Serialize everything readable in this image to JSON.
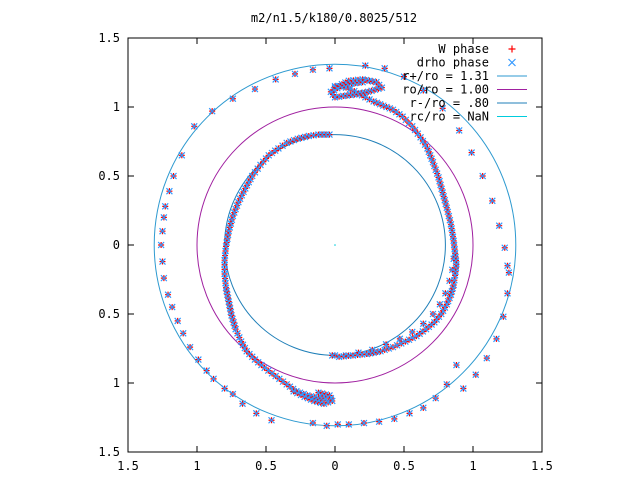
{
  "chart_data": {
    "type": "scatter",
    "title": "m2/n1.5/k180/0.8025/512",
    "xlim": [
      -1.5,
      1.5
    ],
    "ylim": [
      -1.5,
      1.5
    ],
    "x_ticks": [
      {
        "value": -1.5,
        "label": "1.5"
      },
      {
        "value": -1.0,
        "label": "1"
      },
      {
        "value": -0.5,
        "label": "0.5"
      },
      {
        "value": 0.0,
        "label": "0"
      },
      {
        "value": 0.5,
        "label": "0.5"
      },
      {
        "value": 1.0,
        "label": "1"
      },
      {
        "value": 1.5,
        "label": "1.5"
      }
    ],
    "y_ticks": [
      {
        "value": -1.5,
        "label": "1.5"
      },
      {
        "value": -1.0,
        "label": "1"
      },
      {
        "value": -0.5,
        "label": "0.5"
      },
      {
        "value": 0.0,
        "label": "0"
      },
      {
        "value": 0.5,
        "label": "0.5"
      },
      {
        "value": 1.0,
        "label": "1"
      },
      {
        "value": 1.5,
        "label": "1.5"
      }
    ],
    "grid": false,
    "legend_position": "top-right",
    "legend": [
      {
        "label": "W phase",
        "marker": "plus",
        "color": "#ff0000"
      },
      {
        "label": "drho phase",
        "marker": "cross",
        "color": "#3399ff"
      },
      {
        "label": "r+/ro = 1.31",
        "line": true,
        "color": "#2e9ad0"
      },
      {
        "label": "ro/ro = 1.00",
        "line": true,
        "color": "#a020a0"
      },
      {
        "label": "r-/ro = .80",
        "line": true,
        "color": "#1f7fb8"
      },
      {
        "label": "rc/ro = NaN",
        "line": true,
        "color": "#00ccdd"
      }
    ],
    "circles": [
      {
        "name": "r+/ro",
        "radius": 1.31,
        "color": "#2e9ad0"
      },
      {
        "name": "ro/ro",
        "radius": 1.0,
        "color": "#a020a0"
      },
      {
        "name": "r-/ro",
        "radius": 0.8,
        "color": "#1f7fb8"
      }
    ],
    "series": [
      {
        "name": "W phase",
        "marker": "plus",
        "color": "#ff0000",
        "segments": [
          {
            "x": [
              0.22,
              0.36,
              0.5,
              0.64,
              0.78,
              0.9,
              0.99,
              1.07,
              1.14,
              1.19,
              1.23,
              1.25,
              1.26,
              1.25,
              1.22,
              1.17,
              1.1,
              1.02,
              0.93
            ],
            "y": [
              1.3,
              1.28,
              1.22,
              1.12,
              0.99,
              0.83,
              0.67,
              0.5,
              0.32,
              0.14,
              -0.02,
              -0.15,
              -0.2,
              -0.35,
              -0.52,
              -0.68,
              -0.82,
              -0.94,
              -1.04
            ]
          },
          {
            "x": [
              0.88,
              0.81,
              0.73,
              0.64,
              0.54,
              0.43,
              0.32,
              0.21,
              0.1,
              0.02,
              -0.06,
              -0.16
            ],
            "y": [
              -0.87,
              -1.01,
              -1.11,
              -1.18,
              -1.22,
              -1.26,
              -1.28,
              -1.29,
              -1.3,
              -1.3,
              -1.31,
              -1.29
            ]
          },
          {
            "x": [
              -0.46,
              -0.57,
              -0.67,
              -0.74,
              -0.8,
              -0.88,
              -0.93,
              -0.99,
              -1.05,
              -1.1,
              -1.14,
              -1.18,
              -1.21,
              -1.24,
              -1.25,
              -1.26
            ],
            "y": [
              -1.27,
              -1.22,
              -1.15,
              -1.08,
              -1.04,
              -0.97,
              -0.91,
              -0.83,
              -0.74,
              -0.64,
              -0.55,
              -0.45,
              -0.36,
              -0.24,
              -0.12,
              0.0
            ]
          },
          {
            "x": [
              -1.25,
              -1.24,
              -1.23,
              -1.2,
              -1.17,
              -1.11,
              -1.02,
              -0.89,
              -0.74,
              -0.58,
              -0.43,
              -0.29,
              -0.16,
              -0.04
            ],
            "y": [
              0.1,
              0.2,
              0.28,
              0.39,
              0.5,
              0.65,
              0.86,
              0.97,
              1.06,
              1.13,
              1.2,
              1.24,
              1.27,
              1.28
            ]
          },
          {
            "x": [
              0.86,
              0.85,
              0.83,
              0.8,
              0.76,
              0.71,
              0.64,
              0.56,
              0.47,
              0.37,
              0.27,
              0.17,
              0.08,
              0.0,
              -0.02
            ],
            "y": [
              -0.1,
              -0.18,
              -0.26,
              -0.35,
              -0.43,
              -0.5,
              -0.57,
              -0.63,
              -0.68,
              -0.72,
              -0.76,
              -0.78,
              -0.8,
              -0.8,
              -0.8
            ]
          }
        ]
      },
      {
        "name": "drho phase",
        "marker": "cross",
        "color": "#3399ff",
        "segments": [
          {
            "x": [
              0.0,
              0.05,
              0.11,
              0.17,
              0.22,
              0.28,
              0.35,
              0.42,
              0.49,
              0.56,
              0.62,
              0.67,
              0.71,
              0.75,
              0.78,
              0.81,
              0.84,
              0.86,
              0.87,
              0.88,
              0.87,
              0.86,
              0.84,
              0.81,
              0.77,
              0.72,
              0.66,
              0.59,
              0.51,
              0.42,
              0.33,
              0.23,
              0.13,
              0.03
            ],
            "y": [
              1.15,
              1.15,
              1.13,
              1.1,
              1.07,
              1.04,
              1.01,
              0.98,
              0.93,
              0.86,
              0.78,
              0.7,
              0.6,
              0.49,
              0.38,
              0.27,
              0.15,
              0.03,
              -0.06,
              -0.14,
              -0.22,
              -0.29,
              -0.36,
              -0.43,
              -0.5,
              -0.56,
              -0.61,
              -0.66,
              -0.7,
              -0.74,
              -0.77,
              -0.79,
              -0.8,
              -0.81
            ]
          },
          {
            "x": [
              0.0,
              0.1,
              0.2,
              0.3,
              0.34,
              0.24,
              0.14,
              0.06,
              0.0,
              -0.03,
              0.04,
              0.12,
              0.2
            ],
            "y": [
              1.14,
              1.19,
              1.2,
              1.18,
              1.14,
              1.11,
              1.09,
              1.08,
              1.07,
              1.11,
              1.15,
              1.17,
              1.18
            ]
          },
          {
            "x": [
              -0.04,
              -0.12,
              -0.19,
              -0.27,
              -0.35,
              -0.41,
              -0.48,
              -0.54,
              -0.6,
              -0.65,
              -0.7,
              -0.74,
              -0.77,
              -0.79,
              -0.8,
              -0.8,
              -0.79,
              -0.77,
              -0.75,
              -0.72,
              -0.68,
              -0.64,
              -0.58,
              -0.51,
              -0.43,
              -0.35,
              -0.28,
              -0.2,
              -0.12,
              -0.07,
              -0.03
            ],
            "y": [
              0.8,
              0.8,
              0.79,
              0.77,
              0.74,
              0.7,
              0.65,
              0.58,
              0.5,
              0.41,
              0.31,
              0.21,
              0.1,
              -0.01,
              -0.11,
              -0.21,
              -0.31,
              -0.41,
              -0.51,
              -0.61,
              -0.7,
              -0.77,
              -0.83,
              -0.89,
              -0.95,
              -1.01,
              -1.06,
              -1.09,
              -1.11,
              -1.11,
              -1.12
            ]
          },
          {
            "x": [
              -0.3,
              -0.22,
              -0.15,
              -0.08,
              -0.02,
              -0.04,
              -0.12
            ],
            "y": [
              -1.06,
              -1.1,
              -1.13,
              -1.15,
              -1.13,
              -1.09,
              -1.07
            ]
          }
        ]
      }
    ]
  }
}
